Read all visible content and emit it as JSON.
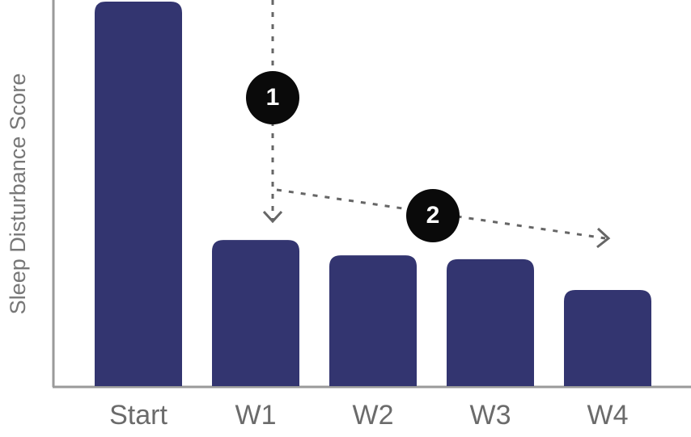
{
  "chart_data": {
    "type": "bar",
    "y_label": "Sleep Disturbance Score",
    "categories": [
      "Start",
      "W1",
      "W2",
      "W3",
      "W4"
    ],
    "values": [
      100,
      38,
      34,
      33,
      25
    ],
    "color": "#333570",
    "ylim": [
      0,
      100
    ],
    "annotations": [
      "1",
      "2"
    ]
  }
}
